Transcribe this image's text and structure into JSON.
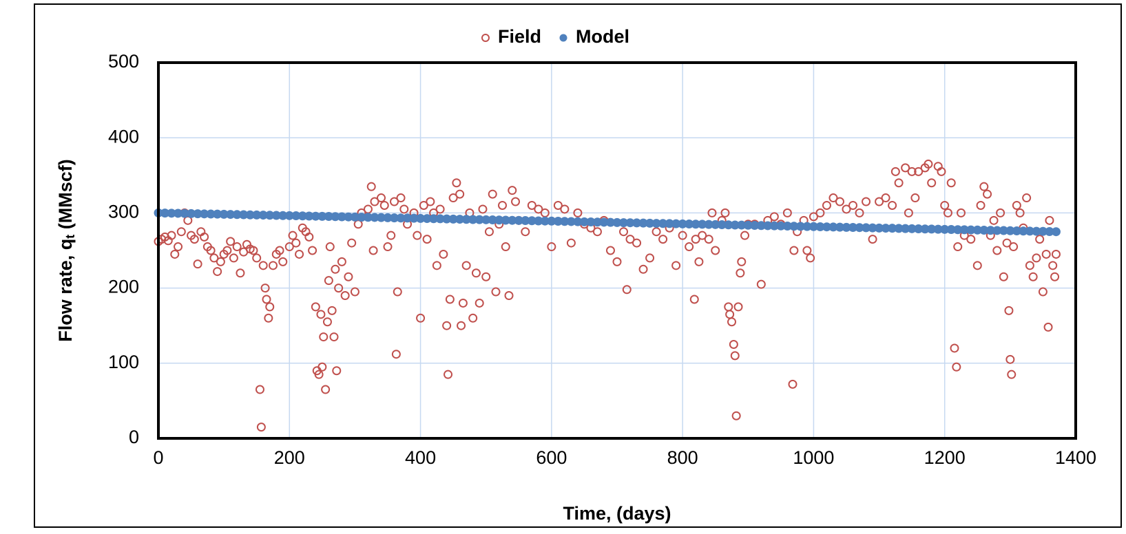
{
  "chart_data": {
    "type": "scatter",
    "x_label": "Time, (days)",
    "y_label": "Flow rate, q",
    "y_label_sub": "t",
    "y_label_unit": " (MMscf)",
    "xlim": [
      0,
      1400
    ],
    "xticks": [
      0,
      200,
      400,
      600,
      800,
      1000,
      1200,
      1400
    ],
    "ylim": [
      0,
      500
    ],
    "yticks": [
      0,
      100,
      200,
      300,
      400,
      500
    ],
    "grid": true,
    "legend": "top",
    "series": [
      {
        "name": "Field",
        "color": "#c0504d",
        "marker": "open",
        "x": [
          0,
          5,
          10,
          15,
          20,
          25,
          30,
          35,
          40,
          45,
          50,
          55,
          60,
          65,
          70,
          75,
          80,
          85,
          90,
          95,
          100,
          105,
          110,
          115,
          120,
          125,
          130,
          135,
          140,
          145,
          150,
          155,
          157,
          160,
          163,
          165,
          168,
          170,
          175,
          180,
          185,
          190,
          200,
          205,
          210,
          215,
          220,
          225,
          230,
          235,
          240,
          242,
          245,
          248,
          250,
          252,
          255,
          258,
          260,
          262,
          265,
          268,
          270,
          272,
          275,
          280,
          285,
          290,
          295,
          300,
          305,
          310,
          320,
          325,
          328,
          330,
          340,
          345,
          350,
          355,
          360,
          363,
          365,
          370,
          375,
          380,
          390,
          395,
          400,
          405,
          410,
          415,
          420,
          425,
          430,
          435,
          440,
          442,
          445,
          450,
          455,
          460,
          462,
          465,
          470,
          475,
          480,
          485,
          490,
          495,
          500,
          505,
          510,
          515,
          520,
          525,
          530,
          535,
          540,
          545,
          550,
          560,
          570,
          580,
          590,
          600,
          610,
          620,
          630,
          640,
          650,
          660,
          670,
          680,
          690,
          700,
          710,
          715,
          720,
          730,
          740,
          750,
          760,
          770,
          780,
          790,
          800,
          810,
          818,
          820,
          825,
          830,
          840,
          845,
          850,
          860,
          865,
          870,
          872,
          875,
          878,
          880,
          882,
          885,
          888,
          890,
          895,
          900,
          910,
          920,
          930,
          940,
          950,
          960,
          968,
          970,
          975,
          985,
          990,
          995,
          1000,
          1010,
          1020,
          1030,
          1040,
          1050,
          1060,
          1070,
          1080,
          1090,
          1100,
          1110,
          1120,
          1125,
          1130,
          1140,
          1145,
          1150,
          1155,
          1160,
          1170,
          1175,
          1180,
          1190,
          1195,
          1200,
          1205,
          1210,
          1215,
          1218,
          1220,
          1225,
          1230,
          1240,
          1250,
          1255,
          1260,
          1265,
          1270,
          1275,
          1280,
          1285,
          1290,
          1295,
          1298,
          1300,
          1302,
          1305,
          1310,
          1315,
          1320,
          1325,
          1330,
          1335,
          1340,
          1345,
          1350,
          1355,
          1358,
          1360,
          1365,
          1368,
          1370
        ],
        "values": [
          262,
          265,
          268,
          263,
          270,
          245,
          255,
          275,
          300,
          290,
          270,
          265,
          232,
          275,
          268,
          255,
          250,
          240,
          222,
          235,
          245,
          250,
          262,
          240,
          255,
          220,
          248,
          258,
          252,
          250,
          240,
          65,
          15,
          230,
          200,
          185,
          160,
          175,
          230,
          245,
          250,
          235,
          255,
          270,
          260,
          245,
          280,
          275,
          268,
          250,
          175,
          90,
          85,
          165,
          95,
          135,
          65,
          155,
          210,
          255,
          170,
          135,
          225,
          90,
          200,
          235,
          190,
          215,
          260,
          195,
          285,
          300,
          305,
          335,
          250,
          315,
          320,
          310,
          255,
          270,
          315,
          112,
          195,
          320,
          305,
          285,
          300,
          270,
          160,
          310,
          265,
          315,
          300,
          230,
          305,
          245,
          150,
          85,
          185,
          320,
          340,
          325,
          150,
          180,
          230,
          300,
          160,
          220,
          180,
          305,
          215,
          275,
          325,
          195,
          285,
          310,
          255,
          190,
          330,
          315,
          290,
          275,
          310,
          305,
          300,
          255,
          310,
          305,
          260,
          300,
          285,
          280,
          275,
          290,
          250,
          235,
          275,
          198,
          265,
          260,
          225,
          240,
          275,
          265,
          280,
          230,
          270,
          255,
          185,
          265,
          235,
          270,
          265,
          300,
          250,
          290,
          300,
          175,
          165,
          155,
          125,
          110,
          30,
          175,
          220,
          235,
          270,
          285,
          285,
          205,
          290,
          295,
          285,
          300,
          72,
          250,
          275,
          290,
          250,
          240,
          295,
          300,
          310,
          320,
          315,
          305,
          310,
          300,
          315,
          265,
          315,
          320,
          310,
          355,
          340,
          360,
          300,
          355,
          320,
          355,
          360,
          365,
          340,
          362,
          355,
          310,
          300,
          340,
          120,
          95,
          255,
          300,
          270,
          265,
          230,
          310,
          335,
          325,
          270,
          290,
          250,
          300,
          215,
          260,
          170,
          105,
          85,
          255,
          310,
          300,
          280,
          320,
          230,
          215,
          240,
          265,
          195,
          245,
          148,
          290,
          230,
          215,
          245
        ]
      },
      {
        "name": "Model",
        "color": "#4f81bd",
        "marker": "filled",
        "x": [
          0,
          10,
          20,
          30,
          40,
          50,
          60,
          70,
          80,
          90,
          100,
          110,
          120,
          130,
          140,
          150,
          160,
          170,
          180,
          190,
          200,
          210,
          220,
          230,
          240,
          250,
          260,
          270,
          280,
          290,
          300,
          310,
          320,
          330,
          340,
          350,
          360,
          370,
          380,
          390,
          400,
          410,
          420,
          430,
          440,
          450,
          460,
          470,
          480,
          490,
          500,
          510,
          520,
          530,
          540,
          550,
          560,
          570,
          580,
          590,
          600,
          610,
          620,
          630,
          640,
          650,
          660,
          670,
          680,
          690,
          700,
          710,
          720,
          730,
          740,
          750,
          760,
          770,
          780,
          790,
          800,
          810,
          820,
          830,
          840,
          850,
          860,
          870,
          880,
          890,
          900,
          910,
          920,
          930,
          940,
          950,
          960,
          970,
          980,
          990,
          1000,
          1010,
          1020,
          1030,
          1040,
          1050,
          1060,
          1070,
          1080,
          1090,
          1100,
          1110,
          1120,
          1130,
          1140,
          1150,
          1160,
          1170,
          1180,
          1190,
          1200,
          1210,
          1220,
          1230,
          1240,
          1250,
          1260,
          1270,
          1280,
          1290,
          1300,
          1310,
          1320,
          1330,
          1340,
          1350,
          1360,
          1370
        ],
        "values": [
          300.0,
          299.8,
          299.6,
          299.5,
          299.3,
          299.1,
          298.9,
          298.7,
          298.5,
          298.4,
          298.2,
          298.0,
          297.8,
          297.6,
          297.4,
          297.3,
          297.1,
          296.9,
          296.7,
          296.5,
          296.4,
          296.2,
          296.0,
          295.8,
          295.6,
          295.4,
          295.3,
          295.1,
          294.9,
          294.7,
          294.5,
          294.3,
          294.2,
          294.0,
          293.8,
          293.6,
          293.4,
          293.2,
          293.1,
          292.9,
          292.7,
          292.5,
          292.3,
          292.2,
          292.0,
          291.8,
          291.6,
          291.4,
          291.2,
          291.1,
          290.9,
          290.7,
          290.5,
          290.3,
          290.1,
          290.0,
          289.8,
          289.6,
          289.4,
          289.2,
          289.1,
          288.9,
          288.7,
          288.5,
          288.3,
          288.1,
          288.0,
          287.8,
          287.6,
          287.4,
          287.2,
          287.0,
          286.9,
          286.7,
          286.5,
          286.3,
          286.1,
          285.9,
          285.8,
          285.6,
          285.4,
          285.2,
          285.0,
          284.9,
          284.7,
          284.5,
          284.3,
          284.1,
          283.9,
          283.8,
          283.6,
          283.4,
          283.2,
          283.0,
          282.8,
          282.7,
          282.5,
          282.3,
          282.1,
          281.9,
          281.8,
          281.6,
          281.4,
          281.2,
          281.0,
          280.8,
          280.7,
          280.5,
          280.3,
          280.1,
          279.9,
          279.7,
          279.6,
          279.4,
          279.2,
          279.0,
          278.8,
          278.6,
          278.5,
          278.3,
          278.1,
          277.9,
          277.7,
          277.6,
          277.4,
          277.2,
          277.0,
          276.8,
          276.6,
          276.5,
          276.3,
          276.1,
          275.9,
          275.7,
          275.5,
          275.4,
          275.2,
          275.0
        ]
      }
    ]
  }
}
